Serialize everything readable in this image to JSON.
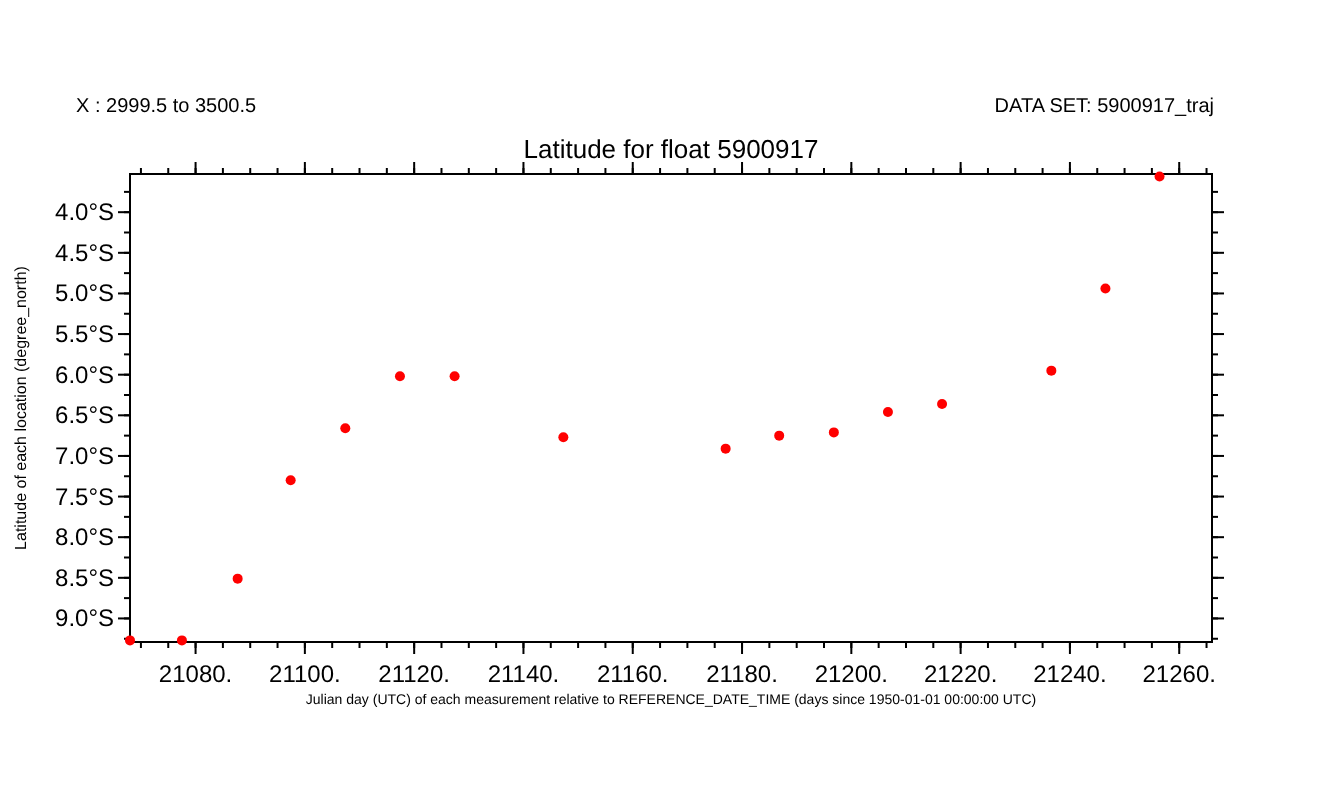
{
  "chart_data": {
    "type": "scatter",
    "title": "Latitude for float 5900917",
    "xlabel": "Julian day (UTC) of each measurement relative to REFERENCE_DATE_TIME (days since 1950-01-01 00:00:00 UTC)",
    "ylabel": "Latitude of each location (degree_north)",
    "annotations": [
      "X : 2999.5 to 3500.5",
      "DATA SET: 5900917_traj"
    ],
    "x": [
      21068,
      21077.5,
      21087.7,
      21097.4,
      21107.4,
      21117.4,
      21127.4,
      21147.3,
      21177.0,
      21186.8,
      21196.8,
      21206.7,
      21216.6,
      21236.6,
      21246.5,
      21256.4
    ],
    "series": [
      {
        "color": "#ff0000",
        "values": [
          -9.27,
          -9.27,
          -8.51,
          -7.3,
          -6.66,
          -6.02,
          -6.02,
          -6.77,
          -6.91,
          -6.75,
          -6.71,
          -6.46,
          -6.36,
          -5.95,
          -4.94,
          -3.56
        ]
      }
    ],
    "marker": "circle",
    "grid": false,
    "xlim": [
      21068,
      21266
    ],
    "ylim": [
      -9.29,
      -3.53
    ],
    "xticks": [
      {
        "value": 21080,
        "label": "21080."
      },
      {
        "value": 21100,
        "label": "21100."
      },
      {
        "value": 21120,
        "label": "21120."
      },
      {
        "value": 21140,
        "label": "21140."
      },
      {
        "value": 21160,
        "label": "21160."
      },
      {
        "value": 21180,
        "label": "21180."
      },
      {
        "value": 21200,
        "label": "21200."
      },
      {
        "value": 21220,
        "label": "21220."
      },
      {
        "value": 21240,
        "label": "21240."
      },
      {
        "value": 21260,
        "label": "21260."
      }
    ],
    "yticks": [
      {
        "value": -9,
        "label": "9.0°S"
      },
      {
        "value": -8.5,
        "label": "8.5°S"
      },
      {
        "value": -8,
        "label": "8.0°S"
      },
      {
        "value": -7.5,
        "label": "7.5°S"
      },
      {
        "value": -7,
        "label": "7.0°S"
      },
      {
        "value": -6.5,
        "label": "6.5°S"
      },
      {
        "value": -6,
        "label": "6.0°S"
      },
      {
        "value": -5.5,
        "label": "5.5°S"
      },
      {
        "value": -5,
        "label": "5.0°S"
      },
      {
        "value": -4.5,
        "label": "4.5°S"
      },
      {
        "value": -4,
        "label": "4.0°S"
      }
    ]
  }
}
